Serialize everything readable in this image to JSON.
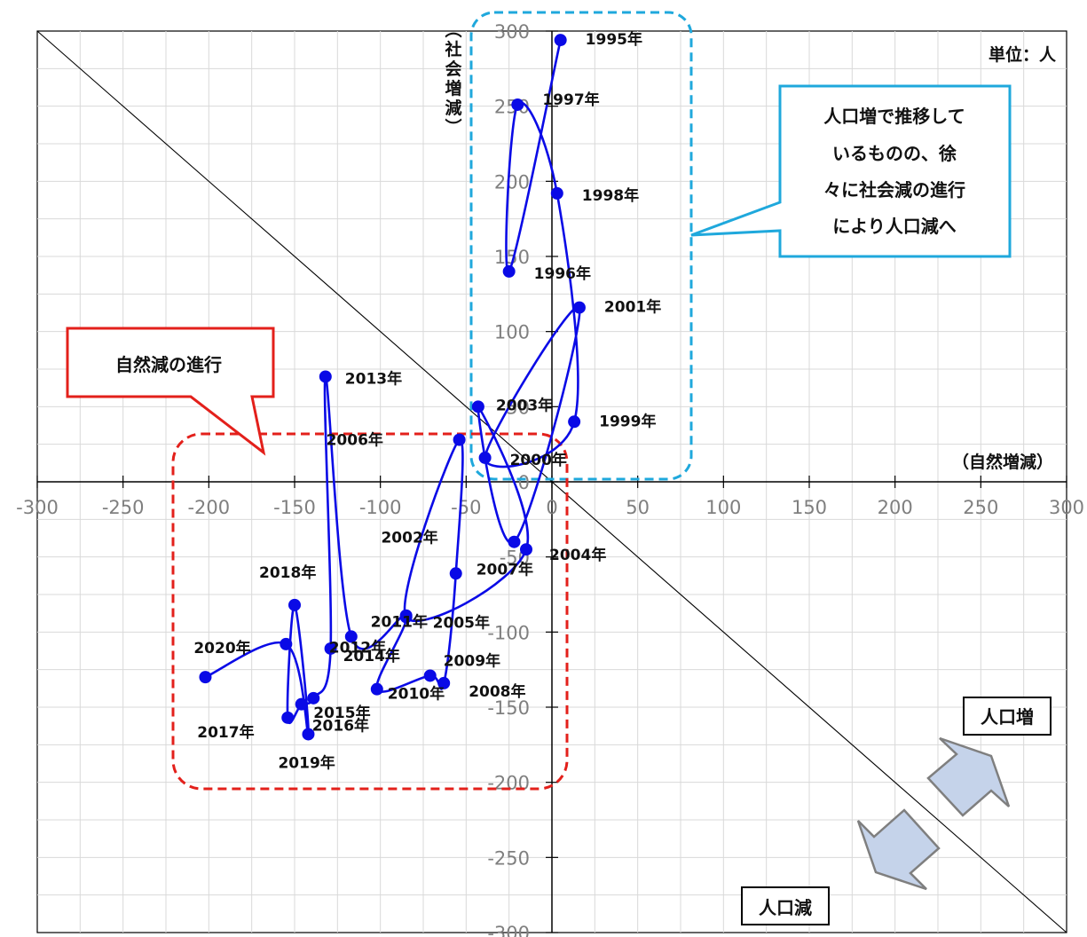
{
  "chart_data": {
    "type": "scatter",
    "xlabel": "（自然増減）",
    "ylabel": "（社会増減）",
    "unit_note": "単位：人",
    "xlim": [
      -300,
      300
    ],
    "ylim": [
      -300,
      300
    ],
    "x_ticks": [
      "-300",
      "-250",
      "-200",
      "-150",
      "-100",
      "-50",
      "0",
      "50",
      "100",
      "150",
      "200",
      "250",
      "300"
    ],
    "y_ticks": [
      "300",
      "250",
      "200",
      "150",
      "100",
      "50",
      "0",
      "-50",
      "-100",
      "-150",
      "-200",
      "-250",
      "-300"
    ],
    "grid": true,
    "series_color": "#0a0ae6",
    "points": [
      {
        "label": "1995年",
        "x": 5,
        "y": 294
      },
      {
        "label": "1996年",
        "x": -25,
        "y": 140
      },
      {
        "label": "1997年",
        "x": -20,
        "y": 251
      },
      {
        "label": "1998年",
        "x": 3,
        "y": 192
      },
      {
        "label": "1999年",
        "x": 13,
        "y": 40
      },
      {
        "label": "2000年",
        "x": -39,
        "y": 16
      },
      {
        "label": "2001年",
        "x": 16,
        "y": 116
      },
      {
        "label": "2002年",
        "x": -22,
        "y": -40
      },
      {
        "label": "2003年",
        "x": -43,
        "y": 50
      },
      {
        "label": "2004年",
        "x": -15,
        "y": -45
      },
      {
        "label": "2005年",
        "x": -85,
        "y": -90
      },
      {
        "label": "2006年",
        "x": -54,
        "y": 28
      },
      {
        "label": "2007年",
        "x": -56,
        "y": -61
      },
      {
        "label": "2008年",
        "x": -63,
        "y": -134
      },
      {
        "label": "2009年",
        "x": -71,
        "y": -129
      },
      {
        "label": "2010年",
        "x": -102,
        "y": -138
      },
      {
        "label": "2011年",
        "x": -85,
        "y": -89
      },
      {
        "label": "2012年",
        "x": -117,
        "y": -103
      },
      {
        "label": "2013年",
        "x": -132,
        "y": 70
      },
      {
        "label": "2014年",
        "x": -129,
        "y": -111
      },
      {
        "label": "2015年",
        "x": -139,
        "y": -144
      },
      {
        "label": "2016年",
        "x": -146,
        "y": -148
      },
      {
        "label": "2017年",
        "x": -154,
        "y": -157
      },
      {
        "label": "2018年",
        "x": -150,
        "y": -82
      },
      {
        "label": "2019年",
        "x": -142,
        "y": -168
      },
      {
        "label": "2020年",
        "x": -155,
        "y": -108
      },
      {
        "label": "",
        "x": -202,
        "y": -130
      }
    ],
    "diagonal": "x + y = 0",
    "annotations": {
      "blue_box": "人口増で推移しているものの、徐々に社会減の進行により人口減へ",
      "red_box": "自然減の進行",
      "increase_label": "人口増",
      "decrease_label": "人口減"
    }
  },
  "colors": {
    "series": "#0a0ae6",
    "blue_callout": "#1fa8dc",
    "red_callout": "#e3201b",
    "grid": "#d9d9d9",
    "arrow_fill": "#c5d3ea"
  }
}
